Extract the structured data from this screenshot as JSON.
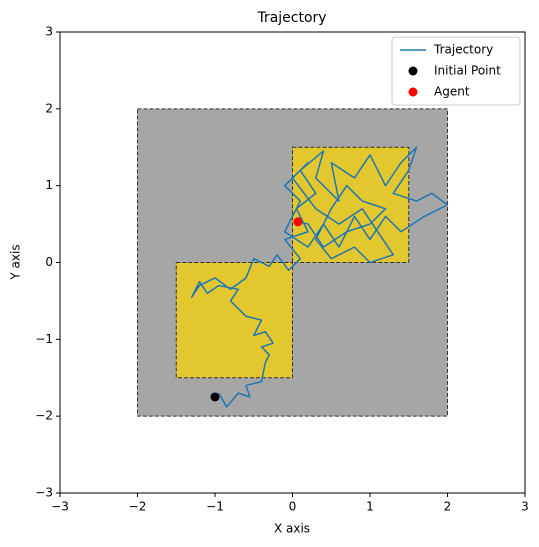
{
  "chart_data": {
    "type": "line",
    "title": "Trajectory",
    "x_label": "X axis",
    "y_label": "Y axis",
    "xlim": [
      -3,
      3
    ],
    "ylim": [
      -3,
      3
    ],
    "xticks": [
      {
        "value": -3,
        "label": "−3"
      },
      {
        "value": -2,
        "label": "−2"
      },
      {
        "value": -1,
        "label": "−1"
      },
      0,
      1,
      2,
      3
    ],
    "yticks": [
      {
        "value": -3,
        "label": "−3"
      },
      {
        "value": -2,
        "label": "−2"
      },
      {
        "value": -1,
        "label": "−1"
      },
      0,
      1,
      2,
      3
    ],
    "regions": [
      {
        "xlim": [
          -2,
          2
        ],
        "ylim": [
          -2,
          2
        ],
        "color": "#a6a6a6"
      },
      {
        "xlim": [
          -1.5,
          0
        ],
        "ylim": [
          -1.5,
          0
        ],
        "color": "#e3c72f"
      },
      {
        "xlim": [
          0,
          1.5
        ],
        "ylim": [
          0,
          1.5
        ],
        "color": "#e3c72f"
      }
    ],
    "series": [
      {
        "name": "Trajectory",
        "color": "#1f77b4",
        "x": [
          -0.95,
          -0.85,
          -0.7,
          -0.55,
          -0.6,
          -0.4,
          -0.35,
          -0.3,
          -0.4,
          -0.25,
          -0.35,
          -0.5,
          -0.4,
          -0.6,
          -0.8,
          -0.7,
          -0.95,
          -1.1,
          -1.2,
          -1.3,
          -1.2,
          -1.0,
          -0.8,
          -0.6,
          -0.5,
          -0.3,
          -0.2,
          -0.05,
          0.1,
          -0.1,
          0.2,
          0.05,
          0.3,
          0.1,
          0.4,
          0.3,
          0.6,
          0.5,
          0.8,
          1.0,
          1.2,
          1.4,
          1.6,
          1.5,
          1.3,
          1.6,
          1.8,
          2.0,
          1.7,
          1.4,
          1.2,
          1.0,
          0.8,
          0.6,
          0.4,
          0.2,
          -0.1,
          0.1,
          -0.1,
          0.2,
          0.0,
          0.3,
          0.6,
          0.9,
          1.1,
          1.3,
          1.0,
          0.8,
          0.5,
          0.3,
          0.5,
          0.7,
          0.9,
          1.2,
          1.0,
          0.7,
          0.4,
          0.2,
          0.07
        ],
        "values": [
          -1.7,
          -1.88,
          -1.7,
          -1.75,
          -1.6,
          -1.55,
          -1.3,
          -1.2,
          -1.1,
          -1.05,
          -0.9,
          -0.95,
          -0.75,
          -0.7,
          -0.5,
          -0.35,
          -0.3,
          -0.4,
          -0.25,
          -0.45,
          -0.3,
          -0.2,
          -0.35,
          -0.2,
          0.05,
          -0.05,
          0.1,
          -0.1,
          0.05,
          0.3,
          0.4,
          0.7,
          0.9,
          1.2,
          1.45,
          1.1,
          0.8,
          1.3,
          1.1,
          1.4,
          1.0,
          1.3,
          1.5,
          1.2,
          0.9,
          0.8,
          0.9,
          0.75,
          0.6,
          0.4,
          0.6,
          0.3,
          0.6,
          0.2,
          0.5,
          0.2,
          0.4,
          0.8,
          1.0,
          1.3,
          1.1,
          0.7,
          0.5,
          0.7,
          0.4,
          0.1,
          0.0,
          0.2,
          0.05,
          0.3,
          0.7,
          1.0,
          0.8,
          0.7,
          0.5,
          0.4,
          0.2,
          0.5,
          0.53
        ]
      },
      {
        "name": "Initial Point",
        "color": "#000000",
        "x": [
          -1
        ],
        "values": [
          -1.75
        ]
      },
      {
        "name": "Agent",
        "color": "#ff0000",
        "x": [
          0.07
        ],
        "values": [
          0.53
        ]
      }
    ],
    "legend": "upper right"
  }
}
